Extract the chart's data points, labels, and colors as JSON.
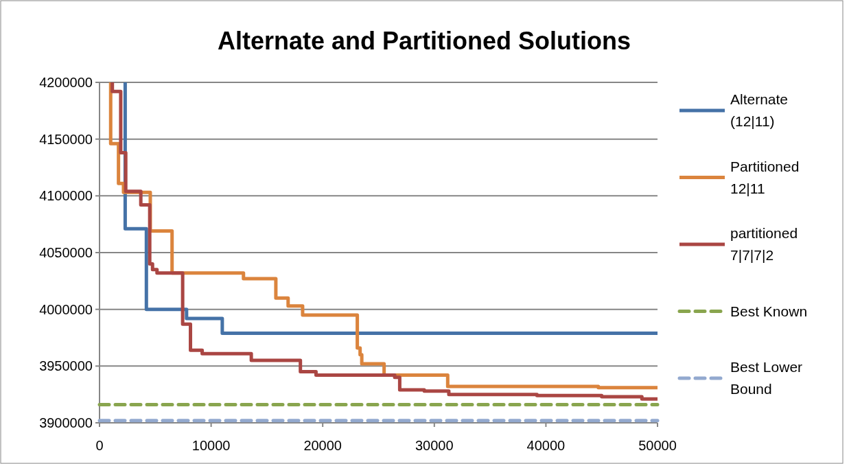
{
  "chart_data": {
    "type": "step",
    "title": "Alternate and Partitioned Solutions",
    "xlim": [
      0,
      50000
    ],
    "xticks": [
      0,
      10000,
      20000,
      30000,
      40000,
      50000
    ],
    "ylim": [
      3900000,
      4200000
    ],
    "yticks": [
      3900000,
      3950000,
      4000000,
      4050000,
      4100000,
      4150000,
      4200000
    ],
    "grid": "y",
    "legend": "right",
    "series": [
      {
        "name": "Alternate (12|11)",
        "color": "#4572a7",
        "x": [
          2300,
          2300,
          4200,
          7800,
          11000,
          50000
        ],
        "values": [
          4200000,
          4071000,
          4000000,
          3992000,
          3979000,
          3979000
        ]
      },
      {
        "name": "Partitioned 12|11",
        "color": "#db843d",
        "x": [
          1000,
          1000,
          1700,
          2150,
          4550,
          6500,
          12900,
          15800,
          16900,
          18200,
          23100,
          23350,
          23500,
          25500,
          31200,
          44700,
          50000
        ],
        "values": [
          4200000,
          4146000,
          4111000,
          4103000,
          4069000,
          4032000,
          4027000,
          4010000,
          4003000,
          3995000,
          3966000,
          3960000,
          3952000,
          3942000,
          3932000,
          3931000,
          3931000
        ]
      },
      {
        "name": "partitioned 7|7|7|2",
        "color": "#aa4643",
        "x": [
          1150,
          1150,
          1900,
          2350,
          3700,
          4500,
          4750,
          5150,
          7450,
          8150,
          9200,
          13600,
          18000,
          19400,
          26450,
          26900,
          29100,
          31300,
          39200,
          45000,
          48600,
          50000
        ],
        "values": [
          4200000,
          4192000,
          4138000,
          4104000,
          4092000,
          4040000,
          4035000,
          4032000,
          3987000,
          3964000,
          3961000,
          3955000,
          3945000,
          3942000,
          3940000,
          3929000,
          3928000,
          3925000,
          3924000,
          3923000,
          3921000,
          3921000
        ]
      },
      {
        "name": "Best Known",
        "line_style": "dashed",
        "color": "#89a54e",
        "x": [
          0,
          50000
        ],
        "values": [
          3916000,
          3916000
        ]
      },
      {
        "name": "Best Lower Bound",
        "line_style": "dashed",
        "color": "#93a9cf",
        "x": [
          0,
          50000
        ],
        "values": [
          3902000,
          3902000
        ]
      }
    ]
  }
}
